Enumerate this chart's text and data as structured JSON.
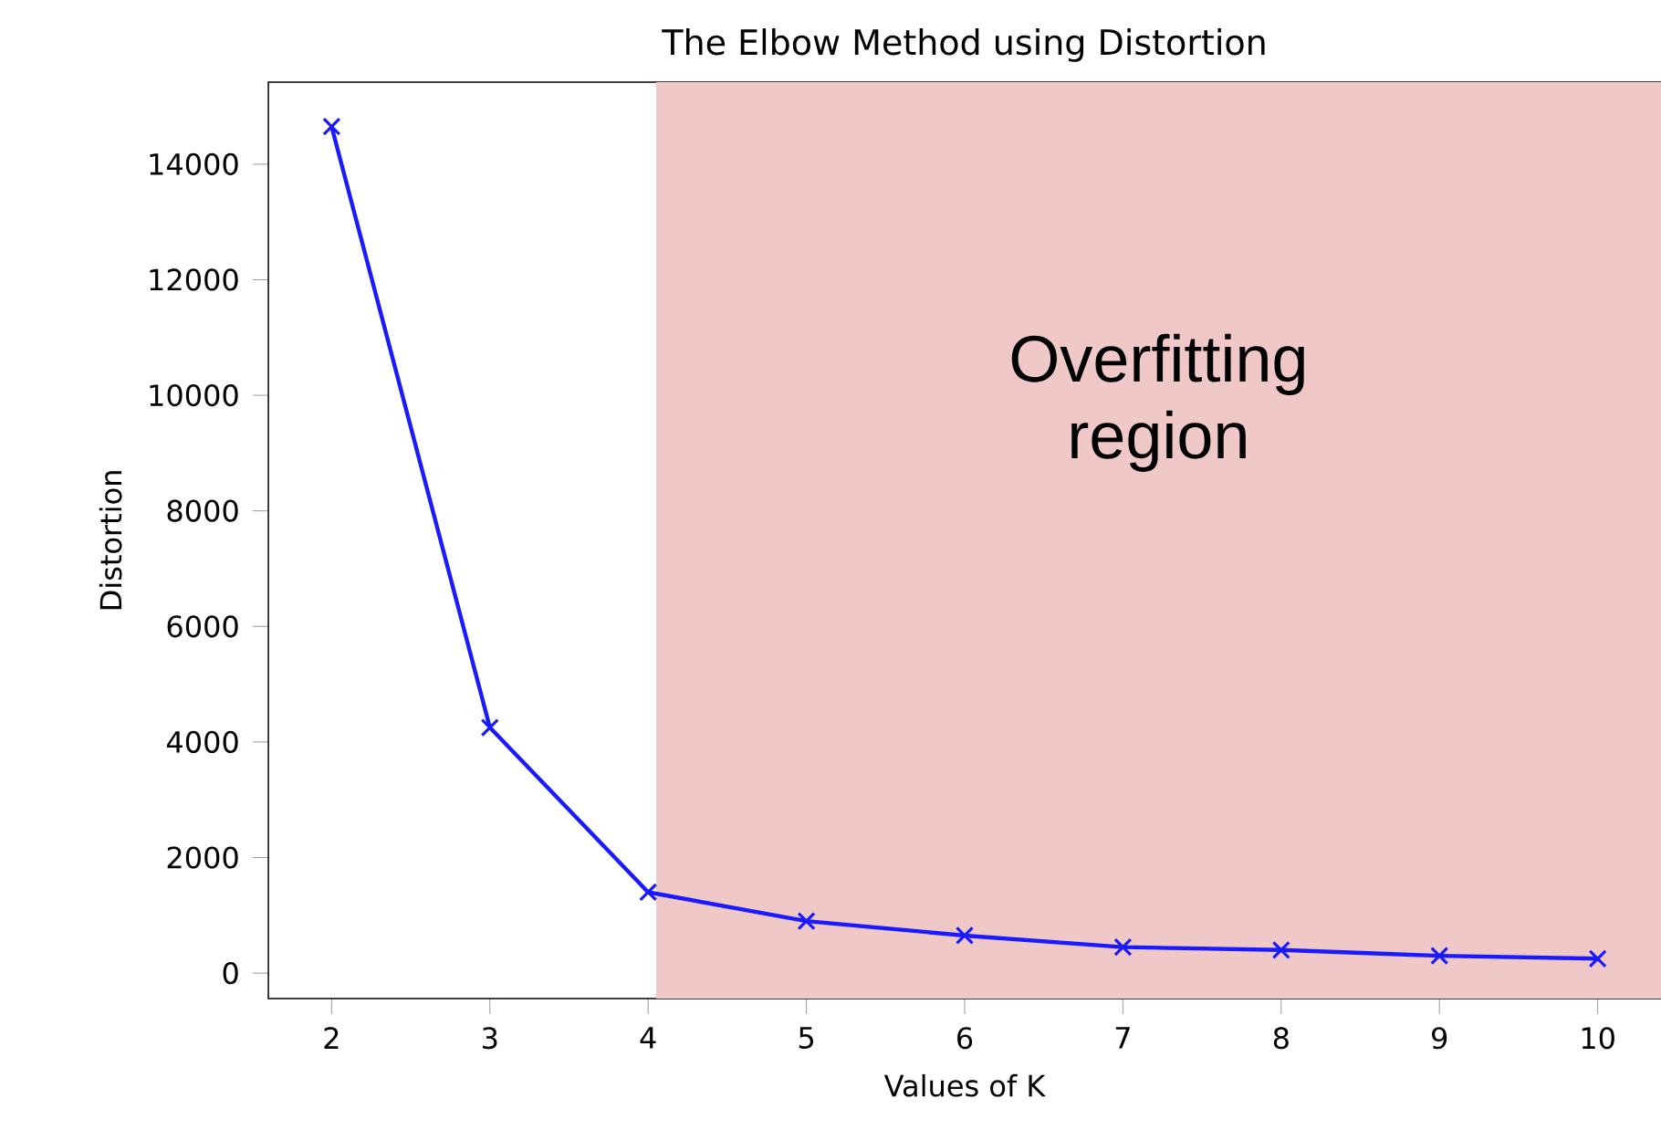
{
  "chart_data": {
    "type": "line",
    "title": "The Elbow Method using Distortion",
    "xlabel": "Values of K",
    "ylabel": "Distortion",
    "x": [
      2,
      3,
      4,
      5,
      6,
      7,
      8,
      9,
      10
    ],
    "series": [
      {
        "color": "#1a1aff",
        "values": [
          14650,
          4250,
          1400,
          900,
          650,
          450,
          400,
          300,
          250
        ]
      }
    ],
    "marker": "cross",
    "line_style": "solid",
    "xlim": [
      1.6,
      10.4
    ],
    "ylim": [
      -440,
      15420
    ],
    "xticks": [
      2,
      3,
      4,
      5,
      6,
      7,
      8,
      9,
      10
    ],
    "yticks": [
      0,
      2000,
      4000,
      6000,
      8000,
      10000,
      12000,
      14000
    ],
    "bands": [
      {
        "axis": "x",
        "from": 4.05,
        "to": 10.4,
        "label": "Overfitting region",
        "color": "#f0c8c8"
      }
    ],
    "grid": false
  }
}
